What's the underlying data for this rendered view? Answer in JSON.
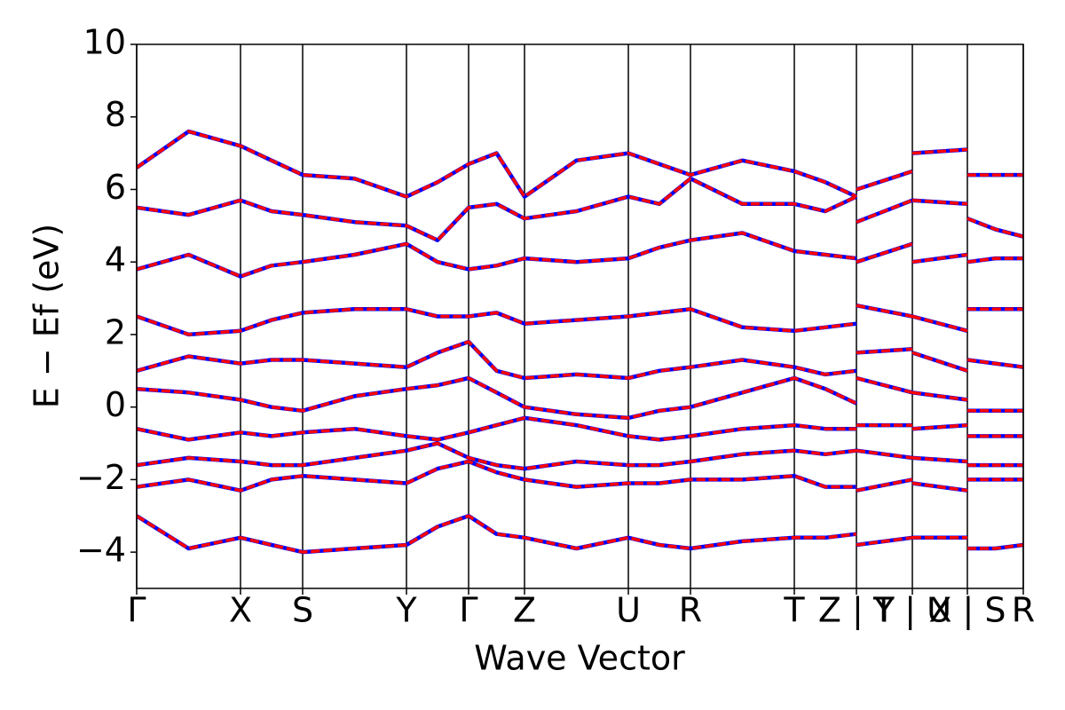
{
  "chart_data": {
    "type": "line",
    "xlabel": "Wave Vector",
    "ylabel": "E − Ef (eV)",
    "xlim": [
      0,
      9.99
    ],
    "ylim": [
      -5,
      10
    ],
    "yticks": [
      {
        "value": -4,
        "label": "−4"
      },
      {
        "value": -2,
        "label": "−2"
      },
      0,
      2,
      4,
      6,
      8,
      10
    ],
    "xticks": [
      {
        "value": 0,
        "label": "Γ"
      },
      {
        "value": 1.17,
        "label": "X"
      },
      {
        "value": 1.87,
        "label": "S"
      },
      {
        "value": 3.04,
        "label": "Y"
      },
      {
        "value": 3.74,
        "label": "Γ"
      },
      {
        "value": 4.37,
        "label": "Z"
      },
      {
        "value": 5.54,
        "label": "U"
      },
      {
        "value": 6.24,
        "label": "R"
      },
      {
        "value": 7.41,
        "label": "T"
      },
      {
        "value": 8.11,
        "label": "Z | Y"
      },
      {
        "value": 8.74,
        "label": "T | U"
      },
      {
        "value": 9.36,
        "label": "X | S"
      },
      {
        "value": 9.99,
        "label": "R"
      }
    ],
    "grid": "x",
    "x": [
      0,
      0.585,
      1.17,
      1.52,
      1.87,
      2.455,
      3.04,
      3.39,
      3.74,
      4.055,
      4.37,
      4.955,
      5.54,
      5.89,
      6.24,
      6.825,
      7.41,
      7.76,
      8.11,
      8.11,
      8.11,
      8.74,
      8.74,
      8.74,
      9.36,
      9.36,
      9.36,
      9.675,
      9.99
    ],
    "series": [
      {
        "color": "#0000ff",
        "style": "solid",
        "values": [
          -3.0,
          -3.9,
          -3.6,
          -3.8,
          -4.0,
          -3.9,
          -3.8,
          -3.3,
          -3.0,
          -3.5,
          -3.6,
          -3.9,
          -3.6,
          -3.8,
          -3.9,
          -3.7,
          -3.6,
          -3.6,
          -3.5,
          null,
          -3.8,
          -3.6,
          null,
          -3.6,
          -3.6,
          null,
          -3.9,
          -3.9,
          -3.8
        ]
      },
      {
        "color": "#0000ff",
        "style": "solid",
        "values": [
          -2.2,
          -2.0,
          -2.3,
          -2.0,
          -1.9,
          -2.0,
          -2.1,
          -1.7,
          -1.5,
          -1.8,
          -2.0,
          -2.2,
          -2.1,
          -2.1,
          -2.0,
          -2.0,
          -1.9,
          -2.2,
          -2.2,
          null,
          -2.3,
          -2.0,
          null,
          -2.1,
          -2.3,
          null,
          -2.0,
          -2.0,
          -2.0
        ]
      },
      {
        "color": "#0000ff",
        "style": "solid",
        "values": [
          -1.6,
          -1.4,
          -1.5,
          -1.6,
          -1.6,
          -1.4,
          -1.2,
          -1.0,
          -1.4,
          -1.6,
          -1.7,
          -1.5,
          -1.6,
          -1.6,
          -1.5,
          -1.3,
          -1.2,
          -1.3,
          -1.2,
          null,
          -1.2,
          -1.4,
          null,
          -1.4,
          -1.5,
          null,
          -1.6,
          -1.6,
          -1.6
        ]
      },
      {
        "color": "#0000ff",
        "style": "solid",
        "values": [
          -0.6,
          -0.9,
          -0.7,
          -0.8,
          -0.7,
          -0.6,
          -0.8,
          -0.9,
          -0.7,
          -0.5,
          -0.3,
          -0.5,
          -0.8,
          -0.9,
          -0.8,
          -0.6,
          -0.5,
          -0.6,
          -0.6,
          null,
          -0.5,
          -0.5,
          null,
          -0.6,
          -0.5,
          null,
          -0.8,
          -0.8,
          -0.8
        ]
      },
      {
        "color": "#0000ff",
        "style": "solid",
        "values": [
          0.5,
          0.4,
          0.2,
          0.0,
          -0.1,
          0.3,
          0.5,
          0.6,
          0.8,
          0.4,
          0.0,
          -0.2,
          -0.3,
          -0.1,
          0.0,
          0.4,
          0.8,
          0.5,
          0.1,
          null,
          0.8,
          0.4,
          null,
          0.4,
          0.2,
          null,
          -0.1,
          -0.1,
          -0.1
        ]
      },
      {
        "color": "#0000ff",
        "style": "solid",
        "values": [
          1.0,
          1.4,
          1.2,
          1.3,
          1.3,
          1.2,
          1.1,
          1.5,
          1.8,
          1.0,
          0.8,
          0.9,
          0.8,
          1.0,
          1.1,
          1.3,
          1.1,
          0.9,
          1.0,
          null,
          1.5,
          1.6,
          null,
          1.5,
          1.0,
          null,
          1.3,
          1.2,
          1.1
        ]
      },
      {
        "color": "#0000ff",
        "style": "solid",
        "values": [
          2.5,
          2.0,
          2.1,
          2.4,
          2.6,
          2.7,
          2.7,
          2.5,
          2.5,
          2.6,
          2.3,
          2.4,
          2.5,
          2.6,
          2.7,
          2.2,
          2.1,
          2.2,
          2.3,
          null,
          2.8,
          2.5,
          null,
          2.5,
          2.1,
          null,
          2.7,
          2.7,
          2.7
        ]
      },
      {
        "color": "#0000ff",
        "style": "solid",
        "values": [
          3.8,
          4.2,
          3.6,
          3.9,
          4.0,
          4.2,
          4.5,
          4.0,
          3.8,
          3.9,
          4.1,
          4.0,
          4.1,
          4.4,
          4.6,
          4.8,
          4.3,
          4.2,
          4.1,
          null,
          4.0,
          4.5,
          null,
          4.0,
          4.2,
          null,
          4.0,
          4.1,
          4.1
        ]
      },
      {
        "color": "#0000ff",
        "style": "solid",
        "values": [
          5.5,
          5.3,
          5.7,
          5.4,
          5.3,
          5.1,
          5.0,
          4.6,
          5.5,
          5.6,
          5.2,
          5.4,
          5.8,
          5.6,
          6.3,
          5.6,
          5.6,
          5.4,
          5.8,
          null,
          5.1,
          5.7,
          null,
          5.7,
          5.6,
          null,
          5.2,
          4.9,
          4.7
        ]
      },
      {
        "color": "#0000ff",
        "style": "solid",
        "values": [
          6.6,
          7.6,
          7.2,
          6.8,
          6.4,
          6.3,
          5.8,
          6.2,
          6.7,
          7.0,
          5.8,
          6.8,
          7.0,
          6.7,
          6.4,
          6.8,
          6.5,
          6.2,
          5.8,
          null,
          6.0,
          6.5,
          null,
          7.0,
          7.1,
          null,
          6.4,
          6.4,
          6.4
        ]
      },
      {
        "color": "#ff0000",
        "style": "dashed",
        "values": [
          -3.0,
          -3.9,
          -3.6,
          -3.8,
          -4.0,
          -3.9,
          -3.8,
          -3.3,
          -3.0,
          -3.5,
          -3.6,
          -3.9,
          -3.6,
          -3.8,
          -3.9,
          -3.7,
          -3.6,
          -3.6,
          -3.5,
          null,
          -3.8,
          -3.6,
          null,
          -3.6,
          -3.6,
          null,
          -3.9,
          -3.9,
          -3.8
        ]
      },
      {
        "color": "#ff0000",
        "style": "dashed",
        "values": [
          -2.2,
          -2.0,
          -2.3,
          -2.0,
          -1.9,
          -2.0,
          -2.1,
          -1.7,
          -1.5,
          -1.8,
          -2.0,
          -2.2,
          -2.1,
          -2.1,
          -2.0,
          -2.0,
          -1.9,
          -2.2,
          -2.2,
          null,
          -2.3,
          -2.0,
          null,
          -2.1,
          -2.3,
          null,
          -2.0,
          -2.0,
          -2.0
        ]
      },
      {
        "color": "#ff0000",
        "style": "dashed",
        "values": [
          -1.6,
          -1.4,
          -1.5,
          -1.6,
          -1.6,
          -1.4,
          -1.2,
          -1.0,
          -1.4,
          -1.6,
          -1.7,
          -1.5,
          -1.6,
          -1.6,
          -1.5,
          -1.3,
          -1.2,
          -1.3,
          -1.2,
          null,
          -1.2,
          -1.4,
          null,
          -1.4,
          -1.5,
          null,
          -1.6,
          -1.6,
          -1.6
        ]
      },
      {
        "color": "#ff0000",
        "style": "dashed",
        "values": [
          -0.6,
          -0.9,
          -0.7,
          -0.8,
          -0.7,
          -0.6,
          -0.8,
          -0.9,
          -0.7,
          -0.5,
          -0.3,
          -0.5,
          -0.8,
          -0.9,
          -0.8,
          -0.6,
          -0.5,
          -0.6,
          -0.6,
          null,
          -0.5,
          -0.5,
          null,
          -0.6,
          -0.5,
          null,
          -0.8,
          -0.8,
          -0.8
        ]
      },
      {
        "color": "#ff0000",
        "style": "dashed",
        "values": [
          0.5,
          0.4,
          0.2,
          0.0,
          -0.1,
          0.3,
          0.5,
          0.6,
          0.8,
          0.4,
          0.0,
          -0.2,
          -0.3,
          -0.1,
          0.0,
          0.4,
          0.8,
          0.5,
          0.1,
          null,
          0.8,
          0.4,
          null,
          0.4,
          0.2,
          null,
          -0.1,
          -0.1,
          -0.1
        ]
      },
      {
        "color": "#ff0000",
        "style": "dashed",
        "values": [
          1.0,
          1.4,
          1.2,
          1.3,
          1.3,
          1.2,
          1.1,
          1.5,
          1.8,
          1.0,
          0.8,
          0.9,
          0.8,
          1.0,
          1.1,
          1.3,
          1.1,
          0.9,
          1.0,
          null,
          1.5,
          1.6,
          null,
          1.5,
          1.0,
          null,
          1.3,
          1.2,
          1.1
        ]
      },
      {
        "color": "#ff0000",
        "style": "dashed",
        "values": [
          2.5,
          2.0,
          2.1,
          2.4,
          2.6,
          2.7,
          2.7,
          2.5,
          2.5,
          2.6,
          2.3,
          2.4,
          2.5,
          2.6,
          2.7,
          2.2,
          2.1,
          2.2,
          2.3,
          null,
          2.8,
          2.5,
          null,
          2.5,
          2.1,
          null,
          2.7,
          2.7,
          2.7
        ]
      },
      {
        "color": "#ff0000",
        "style": "dashed",
        "values": [
          3.8,
          4.2,
          3.6,
          3.9,
          4.0,
          4.2,
          4.5,
          4.0,
          3.8,
          3.9,
          4.1,
          4.0,
          4.1,
          4.4,
          4.6,
          4.8,
          4.3,
          4.2,
          4.1,
          null,
          4.0,
          4.5,
          null,
          4.0,
          4.2,
          null,
          4.0,
          4.1,
          4.1
        ]
      },
      {
        "color": "#ff0000",
        "style": "dashed",
        "values": [
          5.5,
          5.3,
          5.7,
          5.4,
          5.3,
          5.1,
          5.0,
          4.6,
          5.5,
          5.6,
          5.2,
          5.4,
          5.8,
          5.6,
          6.3,
          5.6,
          5.6,
          5.4,
          5.8,
          null,
          5.1,
          5.7,
          null,
          5.7,
          5.6,
          null,
          5.2,
          4.9,
          4.7
        ]
      },
      {
        "color": "#ff0000",
        "style": "dashed",
        "values": [
          6.6,
          7.6,
          7.2,
          6.8,
          6.4,
          6.3,
          5.8,
          6.2,
          6.7,
          7.0,
          5.8,
          6.8,
          7.0,
          6.7,
          6.4,
          6.8,
          6.5,
          6.2,
          5.8,
          null,
          6.0,
          6.5,
          null,
          7.0,
          7.1,
          null,
          6.4,
          6.4,
          6.4
        ]
      }
    ]
  }
}
